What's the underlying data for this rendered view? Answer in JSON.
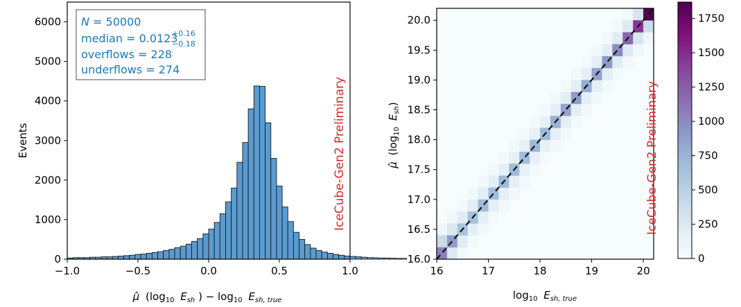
{
  "chart_data": [
    {
      "type": "bar",
      "subtype": "histogram",
      "ylabel": "Events",
      "xlabel": {
        "hat": "μ̂",
        "a": "(log",
        "a_sub": "10",
        "b": "E",
        "b_sub": "sh",
        "c": ") − log",
        "c_sub": "10",
        "d": "E",
        "d_sub": "sh, true"
      },
      "xlim": [
        -1.0,
        1.0
      ],
      "ylim": [
        0,
        6500
      ],
      "xticks": [
        "−1.0",
        "−0.5",
        "0.0",
        "0.5",
        "1.0"
      ],
      "yticks": [
        "0",
        "1000",
        "2000",
        "3000",
        "4000",
        "5000",
        "6000"
      ],
      "bin_width": 0.04,
      "bin_start": -1.0,
      "values": [
        30,
        40,
        40,
        40,
        50,
        50,
        60,
        60,
        70,
        80,
        90,
        100,
        120,
        130,
        150,
        170,
        190,
        220,
        250,
        290,
        330,
        380,
        450,
        520,
        640,
        760,
        930,
        1150,
        1450,
        1800,
        2450,
        2950,
        3800,
        4380,
        4370,
        3450,
        2550,
        1850,
        1320,
        950,
        680,
        500,
        370,
        280,
        220,
        180,
        150,
        120,
        100,
        80,
        70,
        60,
        50,
        40,
        35,
        30,
        30,
        25,
        20,
        20
      ],
      "bar_color": "#5a9bd0",
      "stats": {
        "n_label": "N",
        "n_value": "50000",
        "median_label": "median",
        "median_value": "0.0123",
        "median_plus": "+0.16",
        "median_minus": "−0.18",
        "overflows_label": "overflows",
        "overflows_value": "228",
        "underflows_label": "underflows",
        "underflows_value": "274",
        "eq": " = "
      },
      "watermark": "IceCube-Gen2 Preliminary"
    },
    {
      "type": "heatmap",
      "xlabel": {
        "a": "log",
        "a_sub": "10",
        "b": "E",
        "b_sub": "sh, true"
      },
      "ylabel": {
        "hat": "μ̂",
        "a": "(log",
        "a_sub": "10",
        "b": "E",
        "b_sub": "sh",
        "c": ")"
      },
      "xlim": [
        16.0,
        20.2
      ],
      "ylim": [
        16.0,
        20.2
      ],
      "xticks": [
        "16",
        "17",
        "18",
        "19",
        "20"
      ],
      "yticks": [
        "16.0",
        "16.5",
        "17.0",
        "17.5",
        "18.0",
        "18.5",
        "19.0",
        "19.5",
        "20.0"
      ],
      "bin_width": 0.2,
      "diagonal_counts": [
        1050,
        900,
        620,
        650,
        700,
        680,
        710,
        700,
        690,
        720,
        700,
        760,
        850,
        900,
        800,
        850,
        900,
        1000,
        1200,
        1450,
        1850
      ],
      "off_by_one_counts": [
        400,
        260,
        220,
        200,
        200,
        180,
        180,
        170,
        170,
        170,
        170,
        180,
        200,
        200,
        180,
        190,
        200,
        220,
        250,
        300,
        380
      ],
      "off_by_two_counts": [
        80,
        60,
        50,
        50,
        45,
        40,
        40,
        40,
        38,
        38,
        38,
        40,
        45,
        45,
        40,
        42,
        45,
        50,
        55,
        60,
        70
      ],
      "colorbar": {
        "min": 0,
        "max": 1870,
        "ticks": [
          "0",
          "250",
          "500",
          "750",
          "1000",
          "1250",
          "1500",
          "1750"
        ],
        "colors": [
          "#f7fcfd",
          "#e0ecf4",
          "#bfd3e6",
          "#9ebcda",
          "#8c96c6",
          "#8c6bb1",
          "#88419d",
          "#810f7c",
          "#4d004b"
        ]
      },
      "reference_line": "dashed black diagonal y = x",
      "watermark": "IceCube-Gen2 Preliminary"
    }
  ]
}
